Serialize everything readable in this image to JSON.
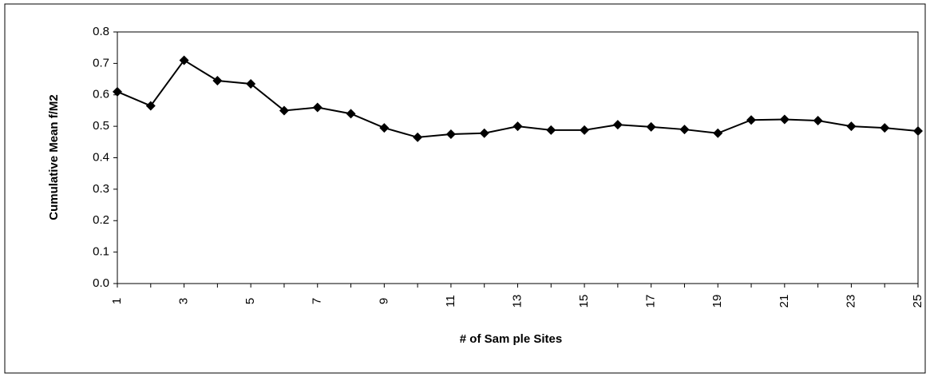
{
  "chart_data": {
    "type": "line",
    "xlabel": "# of Sam ple Sites",
    "ylabel": "Cumulative Mean f/M2",
    "categories": [
      "1",
      null,
      "3",
      null,
      "5",
      null,
      "7",
      null,
      "9",
      null,
      "11",
      null,
      "13",
      null,
      "15",
      null,
      "17",
      null,
      "19",
      null,
      "21",
      null,
      "23",
      null,
      "25"
    ],
    "series": [
      {
        "color": "#000000",
        "values": [
          0.61,
          0.565,
          0.71,
          0.645,
          0.635,
          0.55,
          0.56,
          0.54,
          0.495,
          0.465,
          0.475,
          0.478,
          0.5,
          0.488,
          0.488,
          0.505,
          0.498,
          0.49,
          0.478,
          0.52,
          0.522,
          0.518,
          0.5,
          0.495,
          0.485
        ]
      }
    ],
    "ylim": [
      0,
      0.8
    ],
    "yticks": [
      {
        "value": 0,
        "label": "0.0"
      },
      0.1,
      0.2,
      0.3,
      0.4,
      0.5,
      0.6,
      0.7,
      0.8
    ],
    "grid": false
  }
}
